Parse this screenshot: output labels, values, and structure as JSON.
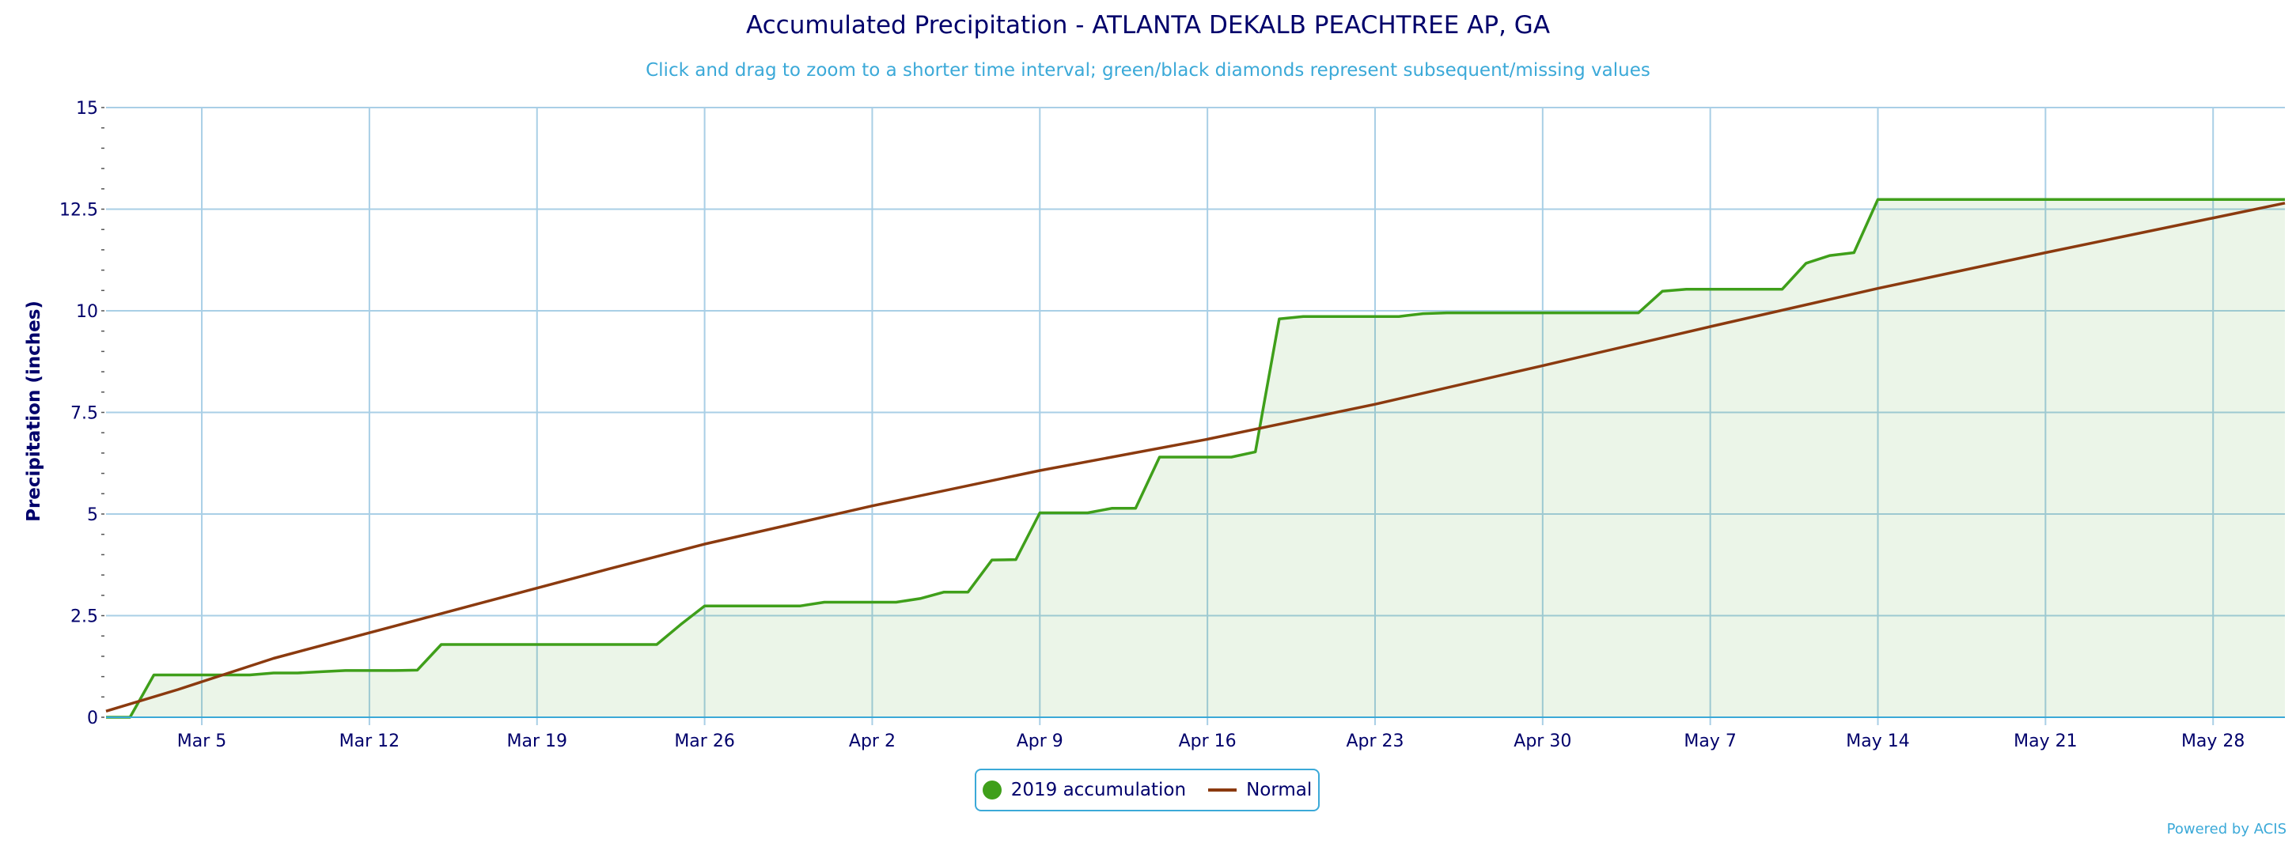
{
  "chart_data": {
    "type": "area",
    "title": "Accumulated Precipitation - ATLANTA DEKALB PEACHTREE AP, GA",
    "subtitle": "Click and drag to zoom to a shorter time interval; green/black diamonds represent subsequent/missing values",
    "ylabel": "Precipitation (inches)",
    "xlabel": "",
    "ylim": [
      0,
      15
    ],
    "yticks": [
      "0",
      "2.5",
      "5",
      "7.5",
      "10",
      "12.5",
      "15"
    ],
    "xticks": [
      "Mar 5",
      "Mar 12",
      "Mar 19",
      "Mar 26",
      "Apr 2",
      "Apr 9",
      "Apr 16",
      "Apr 23",
      "Apr 30",
      "May 7",
      "May 14",
      "May 21",
      "May 28"
    ],
    "x_start": "Mar 1",
    "x_end": "May 31",
    "grid": true,
    "legend_position": "bottom-center",
    "series": [
      {
        "name": "2019 accumulation",
        "color": "#3f9f1a",
        "style": "area-step",
        "x": [
          "Mar 1",
          "Mar 2",
          "Mar 3",
          "Mar 4",
          "Mar 5",
          "Mar 6",
          "Mar 7",
          "Mar 8",
          "Mar 9",
          "Mar 10",
          "Mar 11",
          "Mar 12",
          "Mar 13",
          "Mar 14",
          "Mar 15",
          "Mar 16",
          "Mar 17",
          "Mar 18",
          "Mar 19",
          "Mar 20",
          "Mar 21",
          "Mar 22",
          "Mar 23",
          "Mar 24",
          "Mar 25",
          "Mar 26",
          "Mar 27",
          "Mar 28",
          "Mar 29",
          "Mar 30",
          "Mar 31",
          "Apr 1",
          "Apr 2",
          "Apr 3",
          "Apr 4",
          "Apr 5",
          "Apr 6",
          "Apr 7",
          "Apr 8",
          "Apr 9",
          "Apr 10",
          "Apr 11",
          "Apr 12",
          "Apr 13",
          "Apr 14",
          "Apr 15",
          "Apr 16",
          "Apr 17",
          "Apr 18",
          "Apr 19",
          "Apr 20",
          "Apr 21",
          "Apr 22",
          "Apr 23",
          "Apr 24",
          "Apr 25",
          "Apr 26",
          "Apr 27",
          "Apr 28",
          "Apr 29",
          "Apr 30",
          "May 1",
          "May 2",
          "May 3",
          "May 4",
          "May 5",
          "May 6",
          "May 7",
          "May 8",
          "May 9",
          "May 10",
          "May 11",
          "May 12",
          "May 13",
          "May 14",
          "May 15",
          "May 16",
          "May 17",
          "May 18",
          "May 19",
          "May 20",
          "May 21",
          "May 22",
          "May 23",
          "May 24",
          "May 25",
          "May 26",
          "May 27",
          "May 28",
          "May 29",
          "May 30",
          "May 31"
        ],
        "values": [
          0,
          0,
          1.04,
          1.04,
          1.04,
          1.04,
          1.04,
          1.09,
          1.09,
          1.12,
          1.15,
          1.15,
          1.15,
          1.16,
          1.79,
          1.79,
          1.79,
          1.79,
          1.79,
          1.79,
          1.79,
          1.79,
          1.79,
          1.79,
          2.28,
          2.74,
          2.74,
          2.74,
          2.74,
          2.74,
          2.83,
          2.83,
          2.83,
          2.83,
          2.92,
          3.08,
          3.08,
          3.87,
          3.88,
          5.03,
          5.03,
          5.03,
          5.14,
          5.14,
          6.4,
          6.4,
          6.4,
          6.4,
          6.53,
          9.8,
          9.86,
          9.86,
          9.86,
          9.86,
          9.86,
          9.93,
          9.95,
          9.95,
          9.95,
          9.95,
          9.95,
          9.95,
          9.95,
          9.95,
          9.95,
          10.48,
          10.53,
          10.53,
          10.53,
          10.53,
          10.53,
          11.17,
          11.36,
          11.43,
          12.74,
          12.74,
          12.74,
          12.74,
          12.74,
          12.74,
          12.74,
          12.74,
          12.74,
          12.74,
          12.74,
          12.74,
          12.74,
          12.74,
          12.74,
          12.74,
          12.74,
          12.74
        ]
      },
      {
        "name": "Normal",
        "color": "#8b3a0f",
        "style": "line",
        "x": [
          "Mar 1",
          "Mar 4",
          "Mar 8",
          "Mar 15",
          "Mar 22",
          "Mar 26",
          "Apr 2",
          "Apr 9",
          "Apr 16",
          "Apr 23",
          "Apr 30",
          "May 7",
          "May 14",
          "May 21",
          "May 31"
        ],
        "values": [
          0.15,
          0.68,
          1.45,
          2.55,
          3.65,
          4.26,
          5.2,
          6.07,
          6.84,
          7.7,
          8.65,
          9.61,
          10.55,
          11.43,
          12.65
        ]
      }
    ]
  },
  "footer": {
    "credit": "Powered by ACIS"
  }
}
